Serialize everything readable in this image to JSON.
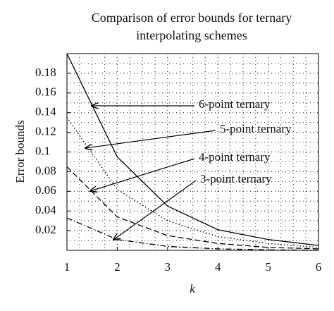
{
  "chart_data": {
    "type": "line",
    "title": [
      "Comparison of error bounds for ternary",
      "interpolating schemes"
    ],
    "x_label": "k",
    "y_label": "Error bounds",
    "x": [
      1,
      2,
      3,
      4,
      5,
      6
    ],
    "series": [
      {
        "name": "6-point ternary",
        "color": "#000000",
        "linestyle": "solid",
        "values": [
          0.2,
          0.095,
          0.045,
          0.021,
          0.011,
          0.005
        ]
      },
      {
        "name": "5-point ternary",
        "color": "#000000",
        "linestyle": "dotted",
        "values": [
          0.135,
          0.062,
          0.03,
          0.014,
          0.007,
          0.003
        ]
      },
      {
        "name": "4-point ternary",
        "color": "#000000",
        "linestyle": "dashed",
        "values": [
          0.085,
          0.034,
          0.015,
          0.007,
          0.003,
          0.0015
        ]
      },
      {
        "name": "3-point ternary",
        "color": "#000000",
        "linestyle": "dashdot",
        "values": [
          0.033,
          0.011,
          0.004,
          0.0015,
          0.0005,
          0.0002
        ]
      }
    ],
    "xlim": [
      1,
      6
    ],
    "xticks": [
      1,
      2,
      3,
      4,
      5,
      6
    ],
    "ylim": [
      0,
      0.2
    ],
    "yticks": [
      0.02,
      0.04,
      0.06,
      0.08,
      0.1,
      0.12,
      0.14,
      0.16,
      0.18
    ],
    "grid": true
  }
}
